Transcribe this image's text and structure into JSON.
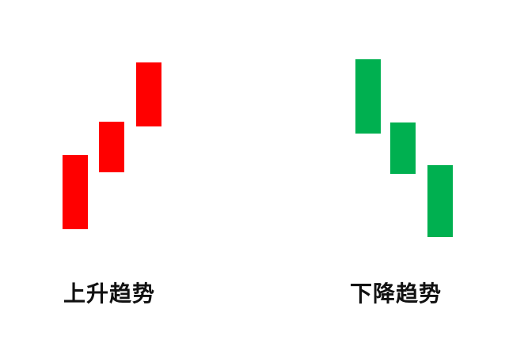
{
  "colors": {
    "up": "#ff0000",
    "down": "#00b050",
    "background": "#ffffff",
    "text": "#111111"
  },
  "groups": [
    {
      "caption": "上升趋势",
      "candle_color": "up",
      "candle_count": 3,
      "direction": "up"
    },
    {
      "caption": "下降趋势",
      "candle_color": "down",
      "candle_count": 3,
      "direction": "down"
    }
  ]
}
